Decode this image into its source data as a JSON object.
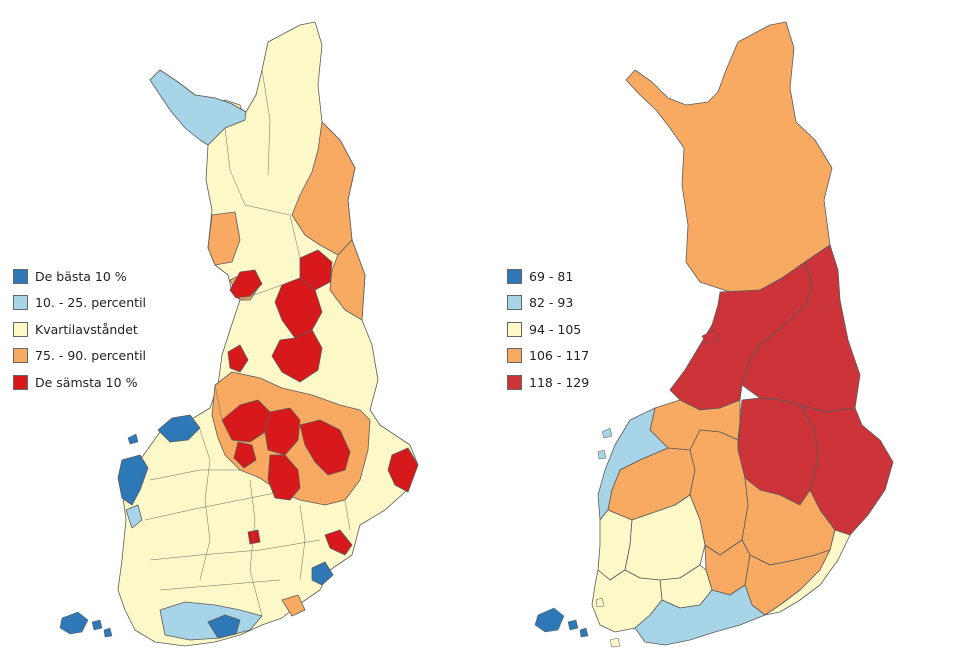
{
  "maps": [
    {
      "name": "municipality-map",
      "legend": [
        {
          "label": "De bästa 10 %",
          "color": "#2e78b7"
        },
        {
          "label": "10. - 25. percentil",
          "color": "#a7d4e6"
        },
        {
          "label": "Kvartilavståndet",
          "color": "#fdf8c8"
        },
        {
          "label": "75. - 90. percentil",
          "color": "#f8a962"
        },
        {
          "label": "De sämsta 10 %",
          "color": "#d7191c"
        }
      ]
    },
    {
      "name": "region-map",
      "legend": [
        {
          "label": "69 - 81",
          "color": "#2e78b7"
        },
        {
          "label": "82 - 93",
          "color": "#a7d4e6"
        },
        {
          "label": "94 - 105",
          "color": "#fdf8c8"
        },
        {
          "label": "106 - 117",
          "color": "#f8a962"
        },
        {
          "label": "118 - 129",
          "color": "#cc343a"
        }
      ]
    }
  ]
}
